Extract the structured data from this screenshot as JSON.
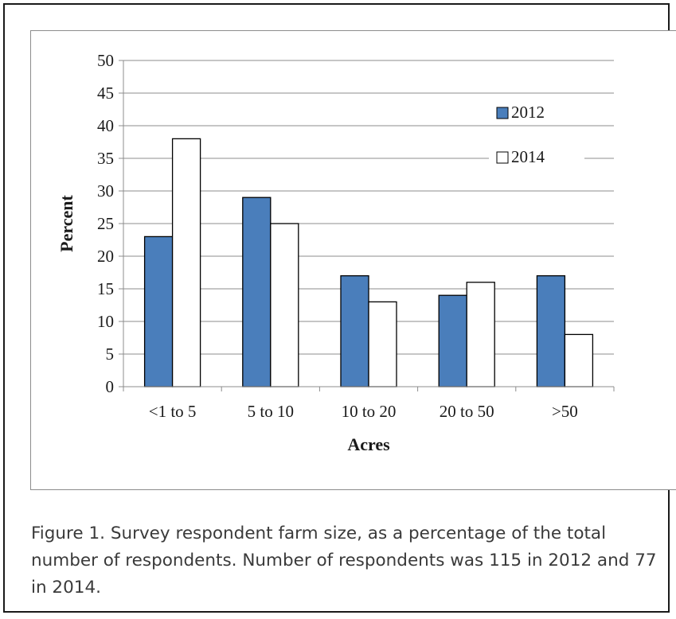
{
  "caption": "Figure 1.  Survey respondent farm size, as a percentage of the total number of respondents.  Number of respondents was 115 in 2012 and 77 in 2014.",
  "colors": {
    "series_2012": "#4a7ebb",
    "series_2014": "#ffffff",
    "grid": "#8c8c8c",
    "border": "#1a1a1a"
  },
  "chart_data": {
    "type": "bar",
    "title": "",
    "xlabel": "Acres",
    "ylabel": "Percent",
    "categories": [
      "<1 to 5",
      "5 to 10",
      "10 to 20",
      "20 to 50",
      ">50"
    ],
    "series": [
      {
        "name": "2012",
        "values": [
          23,
          29,
          17,
          14,
          17
        ]
      },
      {
        "name": "2014",
        "values": [
          38,
          25,
          13,
          16,
          8
        ]
      }
    ],
    "ylim": [
      0,
      50
    ],
    "yticks": [
      "0",
      "5",
      "10",
      "15",
      "20",
      "25",
      "30",
      "35",
      "40",
      "45",
      "50"
    ],
    "grid": true,
    "legend_position": "top-right"
  }
}
